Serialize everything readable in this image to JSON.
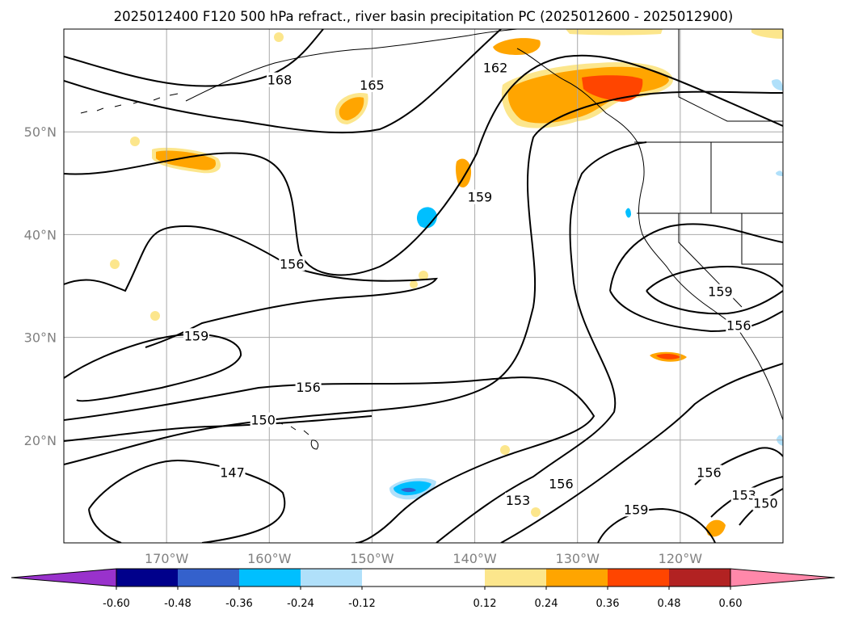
{
  "title": "2025012400 F120 500 hPa refract., river basin precipitation PC (2025012600 - 2025012900)",
  "colors": {
    "contour": "#000000",
    "grid": "#a9a9a9",
    "coast": "#000000",
    "scale": [
      "#9932cc",
      "#00008b",
      "#3461cc",
      "#00bfff",
      "#b0e0fa",
      "#ffffff",
      "#fce68c",
      "#ffa500",
      "#ff4500",
      "#b22222",
      "#ff88aa"
    ]
  },
  "chart_data": {
    "type": "contour_map",
    "variable": "500 hPa refract.",
    "shaded_variable": "river basin precipitation PC",
    "lat_ticks": [
      "20°N",
      "30°N",
      "40°N",
      "50°N"
    ],
    "lon_ticks": [
      "170°W",
      "160°W",
      "150°W",
      "140°W",
      "130°W",
      "120°W"
    ],
    "lat_values": [
      20,
      30,
      40,
      50
    ],
    "lon_values": [
      -170,
      -160,
      -150,
      -140,
      -130,
      -120
    ],
    "xlim": [
      -180,
      -110
    ],
    "ylim": [
      10,
      60
    ],
    "grid": true,
    "contour_labels": [
      {
        "text": "168",
        "lon": -159,
        "lat": 55
      },
      {
        "text": "165",
        "lon": -150,
        "lat": 54.5
      },
      {
        "text": "162",
        "lon": -138,
        "lat": 56.2
      },
      {
        "text": "159",
        "lon": -139.5,
        "lat": 43.6
      },
      {
        "text": "156",
        "lon": -157.8,
        "lat": 37.1
      },
      {
        "text": "159",
        "lon": -167.1,
        "lat": 30.1
      },
      {
        "text": "156",
        "lon": -156.2,
        "lat": 25.1
      },
      {
        "text": "150",
        "lon": -160.6,
        "lat": 21.9
      },
      {
        "text": "147",
        "lon": -163.6,
        "lat": 16.8
      },
      {
        "text": "153",
        "lon": -135.8,
        "lat": 14.1
      },
      {
        "text": "156",
        "lon": -131.6,
        "lat": 15.7
      },
      {
        "text": "159",
        "lon": -124.3,
        "lat": 13.2
      },
      {
        "text": "156",
        "lon": -117.2,
        "lat": 16.8
      },
      {
        "text": "153",
        "lon": -113.8,
        "lat": 14.6
      },
      {
        "text": "150",
        "lon": -111.7,
        "lat": 13.8
      },
      {
        "text": "159",
        "lon": -116.1,
        "lat": 34.4
      },
      {
        "text": "156",
        "lon": -114.3,
        "lat": 31.1
      }
    ],
    "colorbar": {
      "ticks": [
        "-0.60",
        "-0.48",
        "-0.36",
        "-0.24",
        "-0.12",
        "0.12",
        "0.24",
        "0.36",
        "0.48",
        "0.60"
      ],
      "values": [
        -0.6,
        -0.48,
        -0.36,
        -0.24,
        -0.12,
        0.12,
        0.24,
        0.36,
        0.48,
        0.6
      ],
      "extend": "both"
    }
  }
}
